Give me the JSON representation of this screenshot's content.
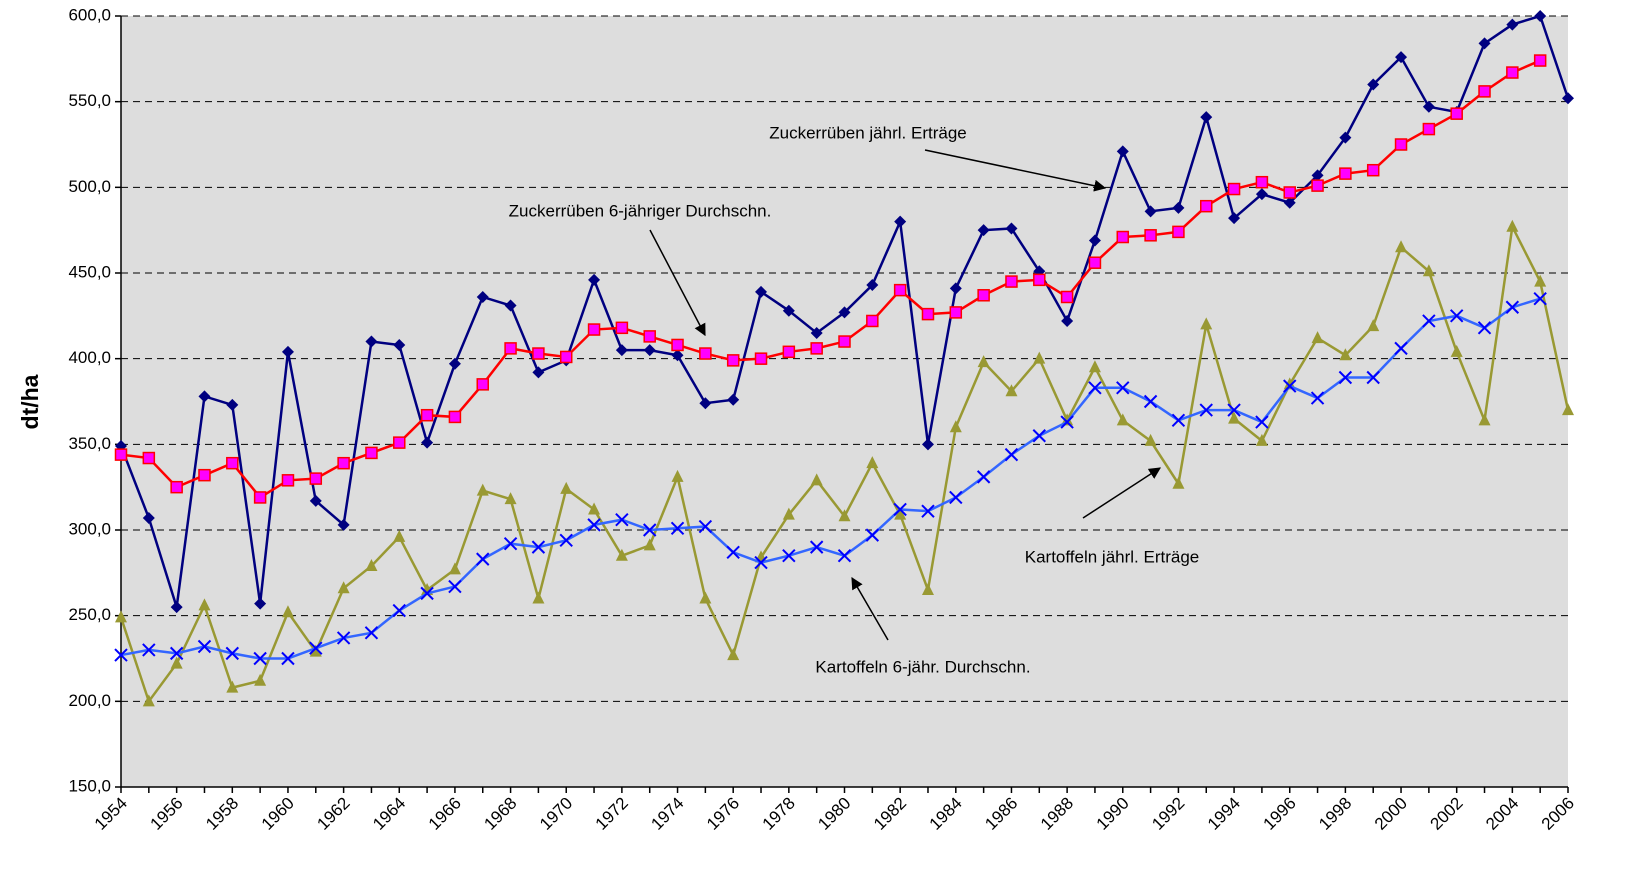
{
  "chart_data": {
    "type": "line",
    "y_label": "dt/ha",
    "categories": [
      "1954",
      null,
      "1956",
      null,
      "1958",
      null,
      "1960",
      null,
      "1962",
      null,
      "1964",
      null,
      "1966",
      null,
      "1968",
      null,
      "1970",
      null,
      "1972",
      null,
      "1974",
      null,
      "1976",
      null,
      "1978",
      null,
      "1980",
      null,
      "1982",
      null,
      "1984",
      null,
      "1986",
      null,
      "1988",
      null,
      "1990",
      null,
      "1992",
      null,
      "1994",
      null,
      "1996",
      null,
      "1998",
      null,
      "2000",
      null,
      "2002",
      null,
      "2004",
      null,
      "2006"
    ],
    "ylim": [
      150,
      600
    ],
    "yticks": [
      {
        "value": 150,
        "label": "150,0"
      },
      {
        "value": 200,
        "label": "200,0"
      },
      {
        "value": 250,
        "label": "250,0"
      },
      {
        "value": 300,
        "label": "300,0"
      },
      {
        "value": 350,
        "label": "350,0"
      },
      {
        "value": 400,
        "label": "400,0"
      },
      {
        "value": 450,
        "label": "450,0"
      },
      {
        "value": 500,
        "label": "500,0"
      },
      {
        "value": 550,
        "label": "550,0"
      },
      {
        "value": 600,
        "label": "600,0"
      }
    ],
    "grid": true,
    "series": [
      {
        "name": "Zuckerrüben jährl. Erträge",
        "color": "#000080",
        "marker": "diamond",
        "values": [
          349,
          307,
          255,
          378,
          373,
          257,
          404,
          317,
          303,
          410,
          408,
          351,
          397,
          436,
          431,
          392,
          399,
          446,
          405,
          405,
          402,
          374,
          376,
          439,
          428,
          415,
          427,
          443,
          480,
          350,
          441,
          475,
          476,
          451,
          422,
          469,
          521,
          486,
          488,
          541,
          482,
          496,
          491,
          507,
          529,
          560,
          576,
          547,
          544,
          584,
          595,
          600,
          552
        ]
      },
      {
        "name": "Zuckerrüben 6-jähriger Durchschn.",
        "color": "#ff0000",
        "marker": "square",
        "values": [
          344,
          342,
          325,
          332,
          339,
          319,
          329,
          330,
          339,
          345,
          351,
          367,
          366,
          385,
          406,
          403,
          401,
          417,
          418,
          413,
          408,
          403,
          399,
          400,
          404,
          406,
          410,
          422,
          440,
          426,
          427,
          437,
          445,
          446,
          436,
          456,
          471,
          472,
          474,
          489,
          499,
          503,
          497,
          501,
          508,
          510,
          525,
          534,
          543,
          556,
          567,
          574,
          null
        ]
      },
      {
        "name": "Kartoffeln jährl. Erträge",
        "color": "#999933",
        "marker": "triangle",
        "values": [
          249,
          200,
          222,
          256,
          208,
          212,
          252,
          229,
          266,
          279,
          296,
          265,
          277,
          323,
          318,
          260,
          324,
          312,
          285,
          291,
          331,
          260,
          227,
          284,
          309,
          329,
          308,
          339,
          309,
          265,
          360,
          398,
          381,
          400,
          364,
          395,
          364,
          352,
          327,
          420,
          365,
          352,
          385,
          412,
          402,
          419,
          465,
          451,
          404,
          364,
          477,
          445,
          370
        ]
      },
      {
        "name": "Kartoffeln 6-jähr. Durchschn.",
        "color": "#3366ff",
        "marker": "x",
        "values": [
          227,
          230,
          228,
          232,
          228,
          225,
          225,
          231,
          237,
          240,
          253,
          263,
          267,
          283,
          292,
          290,
          294,
          303,
          306,
          300,
          301,
          302,
          287,
          281,
          285,
          290,
          285,
          297,
          312,
          311,
          319,
          331,
          344,
          355,
          363,
          383,
          383,
          375,
          364,
          370,
          370,
          363,
          384,
          377,
          389,
          389,
          406,
          422,
          425,
          418,
          430,
          435,
          null
        ]
      }
    ]
  }
}
